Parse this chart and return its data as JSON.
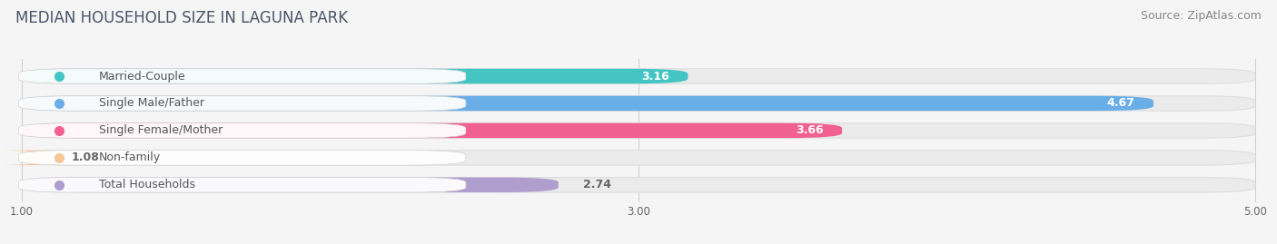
{
  "title": "MEDIAN HOUSEHOLD SIZE IN LAGUNA PARK",
  "source": "Source: ZipAtlas.com",
  "categories": [
    "Married-Couple",
    "Single Male/Father",
    "Single Female/Mother",
    "Non-family",
    "Total Households"
  ],
  "values": [
    3.16,
    4.67,
    3.66,
    1.08,
    2.74
  ],
  "bar_colors": [
    "#45c4c4",
    "#6aaee8",
    "#f06090",
    "#f5c898",
    "#b09ece"
  ],
  "label_dot_colors": [
    "#45c4c4",
    "#6aaee8",
    "#f06090",
    "#f5c898",
    "#b09ece"
  ],
  "value_inside": [
    true,
    true,
    true,
    false,
    false
  ],
  "xlim_min": 1.0,
  "xlim_max": 5.0,
  "xticks": [
    1.0,
    3.0,
    5.0
  ],
  "xtick_labels": [
    "1.00",
    "3.00",
    "5.00"
  ],
  "bg_color": "#f5f5f5",
  "bar_bg_color": "#ebebeb",
  "bar_bg_edge_color": "#dedede",
  "title_color": "#4a5568",
  "source_color": "#888888",
  "label_color": "#555555",
  "value_color_inside": "#ffffff",
  "value_color_outside": "#666666",
  "title_fontsize": 12,
  "source_fontsize": 9,
  "label_fontsize": 9,
  "value_fontsize": 9
}
